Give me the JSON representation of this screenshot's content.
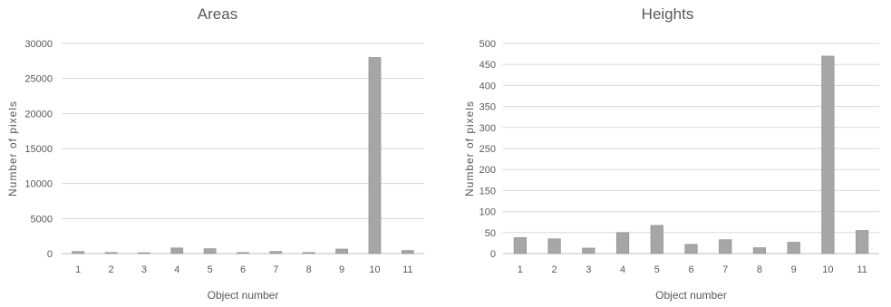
{
  "chart_data": [
    {
      "type": "bar",
      "title": "Areas",
      "xlabel": "Object number",
      "ylabel": "Number of pixels",
      "categories": [
        "1",
        "2",
        "3",
        "4",
        "5",
        "6",
        "7",
        "8",
        "9",
        "10",
        "11"
      ],
      "values": [
        300,
        150,
        120,
        800,
        700,
        150,
        300,
        150,
        650,
        28000,
        450
      ],
      "ylim": [
        0,
        30000
      ],
      "yticks": [
        0,
        5000,
        10000,
        15000,
        20000,
        25000,
        30000
      ],
      "grid": true,
      "bar_color": "#a6a6a6"
    },
    {
      "type": "bar",
      "title": "Heights",
      "xlabel": "Object number",
      "ylabel": "Number of pixels",
      "categories": [
        "1",
        "2",
        "3",
        "4",
        "5",
        "6",
        "7",
        "8",
        "9",
        "10",
        "11"
      ],
      "values": [
        38,
        35,
        13,
        50,
        67,
        22,
        33,
        14,
        27,
        470,
        55
      ],
      "ylim": [
        0,
        500
      ],
      "yticks": [
        0,
        50,
        100,
        150,
        200,
        250,
        300,
        350,
        400,
        450,
        500
      ],
      "grid": true,
      "bar_color": "#a6a6a6"
    }
  ]
}
